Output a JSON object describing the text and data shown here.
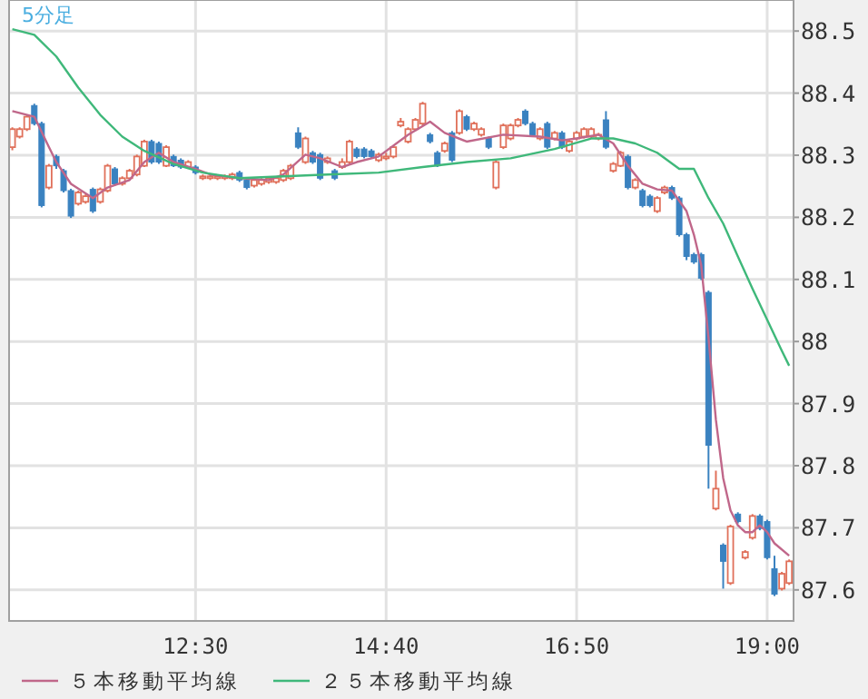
{
  "chart_data": {
    "type": "candlestick",
    "annotations": [
      "5分足"
    ],
    "x": [
      10.417,
      10.5,
      10.583,
      10.667,
      10.75,
      10.833,
      10.917,
      11,
      11.083,
      11.167,
      11.25,
      11.333,
      11.417,
      11.5,
      11.583,
      11.667,
      11.75,
      11.833,
      11.917,
      12,
      12.083,
      12.167,
      12.25,
      12.333,
      12.417,
      12.5,
      12.583,
      12.667,
      12.75,
      12.833,
      12.917,
      13,
      13.083,
      13.167,
      13.25,
      13.333,
      13.417,
      13.5,
      13.583,
      13.667,
      13.75,
      13.833,
      13.917,
      14,
      14.083,
      14.167,
      14.25,
      14.333,
      14.417,
      14.5,
      14.583,
      14.667,
      14.75,
      14.833,
      14.917,
      15,
      15.083,
      15.167,
      15.25,
      15.333,
      15.417,
      15.5,
      15.583,
      15.667,
      15.75,
      15.833,
      15.917,
      16,
      16.083,
      16.167,
      16.25,
      16.333,
      16.417,
      16.5,
      16.583,
      16.667,
      16.75,
      16.833,
      16.917,
      17,
      17.083,
      17.167,
      17.25,
      17.333,
      17.417,
      17.5,
      17.583,
      17.667,
      17.75,
      17.833,
      17.917,
      18,
      18.083,
      18.167,
      18.25,
      18.333,
      18.417,
      18.5,
      18.583,
      18.667,
      18.75,
      18.833,
      18.917,
      19,
      19.083,
      19.167,
      19.25
    ],
    "ohlc": [
      [
        88.313,
        88.345,
        88.308,
        88.342
      ],
      [
        88.33,
        88.345,
        88.327,
        88.342
      ],
      [
        88.342,
        88.365,
        88.339,
        88.362
      ],
      [
        88.38,
        88.383,
        88.348,
        88.351
      ],
      [
        88.351,
        88.354,
        88.216,
        88.219
      ],
      [
        88.248,
        88.286,
        88.245,
        88.283
      ],
      [
        88.298,
        88.301,
        88.278,
        88.283
      ],
      [
        88.275,
        88.278,
        88.24,
        88.243
      ],
      [
        88.243,
        88.246,
        88.199,
        88.202
      ],
      [
        88.222,
        88.243,
        88.219,
        88.24
      ],
      [
        88.225,
        88.237,
        88.222,
        88.234
      ],
      [
        88.245,
        88.248,
        88.207,
        88.21
      ],
      [
        88.225,
        88.248,
        88.222,
        88.245
      ],
      [
        88.243,
        88.286,
        88.24,
        88.283
      ],
      [
        88.278,
        88.281,
        88.251,
        88.254
      ],
      [
        88.254,
        88.266,
        88.251,
        88.263
      ],
      [
        88.263,
        88.278,
        88.26,
        88.275
      ],
      [
        88.269,
        88.301,
        88.266,
        88.298
      ],
      [
        88.283,
        88.325,
        88.281,
        88.322
      ],
      [
        88.322,
        88.325,
        88.286,
        88.289
      ],
      [
        88.319,
        88.322,
        88.286,
        88.289
      ],
      [
        88.283,
        88.316,
        88.281,
        88.313
      ],
      [
        88.298,
        88.301,
        88.281,
        88.283
      ],
      [
        88.292,
        88.295,
        88.278,
        88.281
      ],
      [
        88.281,
        88.292,
        88.278,
        88.289
      ],
      [
        88.281,
        88.284,
        88.269,
        88.272
      ],
      [
        88.263,
        88.269,
        88.26,
        88.266
      ],
      [
        88.263,
        88.269,
        88.26,
        88.266
      ],
      [
        88.263,
        88.269,
        88.26,
        88.266
      ],
      [
        88.263,
        88.269,
        88.26,
        88.266
      ],
      [
        88.263,
        88.272,
        88.26,
        88.269
      ],
      [
        88.272,
        88.275,
        88.257,
        88.26
      ],
      [
        88.26,
        88.263,
        88.245,
        88.248
      ],
      [
        88.251,
        88.263,
        88.248,
        88.26
      ],
      [
        88.254,
        88.263,
        88.251,
        88.26
      ],
      [
        88.257,
        88.266,
        88.254,
        88.263
      ],
      [
        88.257,
        88.266,
        88.254,
        88.263
      ],
      [
        88.26,
        88.278,
        88.257,
        88.275
      ],
      [
        88.263,
        88.286,
        88.26,
        88.283
      ],
      [
        88.336,
        88.345,
        88.31,
        88.313
      ],
      [
        88.289,
        88.33,
        88.286,
        88.327
      ],
      [
        88.304,
        88.307,
        88.286,
        88.289
      ],
      [
        88.301,
        88.304,
        88.26,
        88.263
      ],
      [
        88.289,
        88.298,
        88.286,
        88.295
      ],
      [
        88.275,
        88.278,
        88.26,
        88.263
      ],
      [
        88.281,
        88.295,
        88.278,
        88.289
      ],
      [
        88.289,
        88.325,
        88.286,
        88.322
      ],
      [
        88.31,
        88.313,
        88.295,
        88.298
      ],
      [
        88.31,
        88.313,
        88.295,
        88.298
      ],
      [
        88.307,
        88.31,
        88.295,
        88.298
      ],
      [
        88.292,
        88.304,
        88.289,
        88.301
      ],
      [
        88.295,
        88.304,
        88.292,
        88.298
      ],
      [
        88.298,
        88.316,
        88.295,
        88.313
      ],
      [
        88.348,
        88.36,
        88.345,
        88.354
      ],
      [
        88.322,
        88.345,
        88.319,
        88.342
      ],
      [
        88.342,
        88.36,
        88.339,
        88.357
      ],
      [
        88.351,
        88.386,
        88.348,
        88.383
      ],
      [
        88.333,
        88.336,
        88.319,
        88.322
      ],
      [
        88.304,
        88.307,
        88.281,
        88.283
      ],
      [
        88.307,
        88.322,
        88.304,
        88.319
      ],
      [
        88.336,
        88.339,
        88.289,
        88.292
      ],
      [
        88.336,
        88.374,
        88.333,
        88.371
      ],
      [
        88.362,
        88.365,
        88.339,
        88.342
      ],
      [
        88.342,
        88.354,
        88.339,
        88.351
      ],
      [
        88.333,
        88.345,
        88.33,
        88.342
      ],
      [
        88.327,
        88.33,
        88.31,
        88.313
      ],
      [
        88.248,
        88.292,
        88.245,
        88.289
      ],
      [
        88.313,
        88.351,
        88.31,
        88.348
      ],
      [
        88.327,
        88.351,
        88.324,
        88.348
      ],
      [
        88.348,
        88.36,
        88.345,
        88.357
      ],
      [
        88.371,
        88.374,
        88.348,
        88.351
      ],
      [
        88.351,
        88.354,
        88.33,
        88.333
      ],
      [
        88.327,
        88.345,
        88.324,
        88.342
      ],
      [
        88.351,
        88.354,
        88.31,
        88.313
      ],
      [
        88.327,
        88.339,
        88.324,
        88.336
      ],
      [
        88.336,
        88.339,
        88.31,
        88.313
      ],
      [
        88.307,
        88.325,
        88.304,
        88.322
      ],
      [
        88.327,
        88.339,
        88.324,
        88.336
      ],
      [
        88.33,
        88.345,
        88.327,
        88.342
      ],
      [
        88.33,
        88.345,
        88.327,
        88.342
      ],
      [
        88.327,
        88.336,
        88.324,
        88.333
      ],
      [
        88.357,
        88.371,
        88.31,
        88.313
      ],
      [
        88.275,
        88.289,
        88.272,
        88.286
      ],
      [
        88.283,
        88.307,
        88.281,
        88.304
      ],
      [
        88.298,
        88.301,
        88.245,
        88.248
      ],
      [
        88.248,
        88.263,
        88.245,
        88.26
      ],
      [
        88.243,
        88.246,
        88.216,
        88.219
      ],
      [
        88.234,
        88.237,
        88.216,
        88.219
      ],
      [
        88.21,
        88.234,
        88.207,
        88.231
      ],
      [
        88.24,
        88.251,
        88.237,
        88.248
      ],
      [
        88.248,
        88.251,
        88.228,
        88.231
      ],
      [
        88.231,
        88.234,
        88.169,
        88.172
      ],
      [
        88.172,
        88.175,
        88.131,
        88.137
      ],
      [
        88.14,
        88.143,
        88.125,
        88.128
      ],
      [
        88.14,
        88.143,
        88.099,
        88.102
      ],
      [
        88.079,
        88.082,
        87.763,
        87.833
      ],
      [
        87.731,
        87.792,
        87.728,
        87.763
      ],
      [
        87.672,
        87.675,
        87.602,
        87.646
      ],
      [
        87.611,
        87.705,
        87.608,
        87.702
      ],
      [
        87.722,
        87.725,
        87.707,
        87.71
      ],
      [
        87.652,
        87.664,
        87.649,
        87.661
      ],
      [
        87.684,
        87.722,
        87.681,
        87.719
      ],
      [
        87.719,
        87.722,
        87.696,
        87.699
      ],
      [
        87.71,
        87.713,
        87.649,
        87.652
      ],
      [
        87.634,
        87.655,
        87.59,
        87.593
      ],
      [
        87.602,
        87.629,
        87.599,
        87.626
      ],
      [
        87.611,
        87.649,
        87.608,
        87.646
      ]
    ],
    "colors": [
      "#e0705a",
      "#e0705a",
      "#e0705a",
      "#3a82c0",
      "#3a82c0",
      "#e0705a",
      "#3a82c0",
      "#3a82c0",
      "#3a82c0",
      "#e0705a",
      "#e0705a",
      "#3a82c0",
      "#e0705a",
      "#e0705a",
      "#3a82c0",
      "#e0705a",
      "#e0705a",
      "#e0705a",
      "#e0705a",
      "#3a82c0",
      "#3a82c0",
      "#e0705a",
      "#3a82c0",
      "#3a82c0",
      "#e0705a",
      "#3a82c0",
      "#e0705a",
      "#e0705a",
      "#e0705a",
      "#e0705a",
      "#e0705a",
      "#3a82c0",
      "#3a82c0",
      "#e0705a",
      "#e0705a",
      "#e0705a",
      "#e0705a",
      "#e0705a",
      "#e0705a",
      "#3a82c0",
      "#e0705a",
      "#3a82c0",
      "#3a82c0",
      "#e0705a",
      "#3a82c0",
      "#e0705a",
      "#e0705a",
      "#3a82c0",
      "#3a82c0",
      "#3a82c0",
      "#e0705a",
      "#e0705a",
      "#e0705a",
      "#e0705a",
      "#e0705a",
      "#e0705a",
      "#e0705a",
      "#3a82c0",
      "#3a82c0",
      "#e0705a",
      "#3a82c0",
      "#e0705a",
      "#3a82c0",
      "#e0705a",
      "#e0705a",
      "#3a82c0",
      "#e0705a",
      "#e0705a",
      "#e0705a",
      "#e0705a",
      "#3a82c0",
      "#3a82c0",
      "#e0705a",
      "#3a82c0",
      "#e0705a",
      "#3a82c0",
      "#e0705a",
      "#e0705a",
      "#e0705a",
      "#e0705a",
      "#e0705a",
      "#3a82c0",
      "#e0705a",
      "#e0705a",
      "#3a82c0",
      "#e0705a",
      "#3a82c0",
      "#3a82c0",
      "#e0705a",
      "#e0705a",
      "#3a82c0",
      "#3a82c0",
      "#3a82c0",
      "#3a82c0",
      "#3a82c0",
      "#3a82c0",
      "#e0705a",
      "#3a82c0",
      "#e0705a",
      "#3a82c0",
      "#e0705a",
      "#e0705a",
      "#3a82c0",
      "#3a82c0",
      "#3a82c0",
      "#e0705a",
      "#e0705a"
    ],
    "series": [
      {
        "name": "５本移動平均線",
        "type": "line",
        "color": "#c0678a",
        "x": [
          10.417,
          10.667,
          10.833,
          10.917,
          11.083,
          11.333,
          11.5,
          11.75,
          11.917,
          12.083,
          12.25,
          12.5,
          12.667,
          13,
          13.333,
          13.5,
          13.75,
          13.917,
          14.167,
          14.333,
          14.583,
          14.917,
          15.167,
          15.333,
          15.583,
          16,
          16.417,
          16.667,
          16.833,
          17.083,
          17.25,
          17.417,
          17.583,
          17.75,
          17.917,
          18.083,
          18.167,
          18.25,
          18.333,
          18.417,
          18.5,
          18.583,
          18.667,
          18.75,
          18.833,
          18.917,
          19,
          19.083,
          19.25
        ],
        "values": [
          88.371,
          88.362,
          88.313,
          88.289,
          88.254,
          88.231,
          88.248,
          88.26,
          88.289,
          88.304,
          88.289,
          88.278,
          88.269,
          88.263,
          88.26,
          88.269,
          88.301,
          88.295,
          88.281,
          88.289,
          88.298,
          88.333,
          88.354,
          88.336,
          88.322,
          88.333,
          88.33,
          88.324,
          88.327,
          88.333,
          88.319,
          88.283,
          88.254,
          88.245,
          88.243,
          88.21,
          88.172,
          88.123,
          88.006,
          87.874,
          87.78,
          87.728,
          87.704,
          87.693,
          87.693,
          87.704,
          87.693,
          87.675,
          87.655
        ]
      },
      {
        "name": "２５本移動平均線",
        "type": "line",
        "color": "#3fb87a",
        "x": [
          10.417,
          10.667,
          10.917,
          11.167,
          11.417,
          11.667,
          11.917,
          12.25,
          12.583,
          13,
          13.5,
          14,
          14.583,
          15.083,
          15.583,
          16.083,
          16.583,
          17,
          17.25,
          17.5,
          17.75,
          18,
          18.167,
          18.333,
          18.5,
          18.667,
          18.833,
          19,
          19.167,
          19.25
        ],
        "values": [
          88.503,
          88.494,
          88.459,
          88.409,
          88.365,
          88.33,
          88.307,
          88.286,
          88.272,
          88.263,
          88.266,
          88.269,
          88.272,
          88.281,
          88.289,
          88.295,
          88.31,
          88.327,
          88.327,
          88.319,
          88.304,
          88.278,
          88.278,
          88.231,
          88.19,
          88.137,
          88.085,
          88.035,
          87.985,
          87.961
        ]
      }
    ],
    "xlim": [
      10.38,
      19.3
    ],
    "xticks": [
      {
        "value": 12.5,
        "label": "12:30"
      },
      {
        "value": 14.667,
        "label": "14:40"
      },
      {
        "value": 16.833,
        "label": "16:50"
      },
      {
        "value": 19,
        "label": "19:00"
      }
    ],
    "ylim": [
      87.55,
      88.55
    ],
    "yticks": [
      87.6,
      87.7,
      87.8,
      87.9,
      88,
      88.1,
      88.2,
      88.3,
      88.4,
      88.5
    ],
    "grid": true,
    "legend": "bottom"
  }
}
